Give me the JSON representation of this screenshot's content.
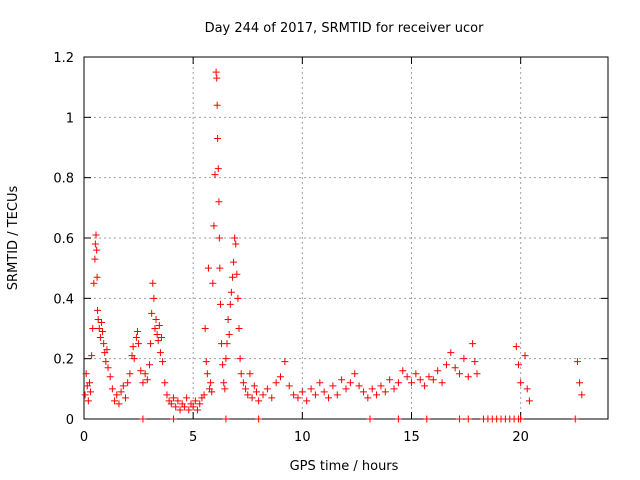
{
  "chart_data": {
    "type": "scatter",
    "title": "Day 244 of 2017, SRMTID for receiver ucor",
    "xlabel": "GPS time / hours",
    "ylabel": "SRMTID / TECUs",
    "xlim": [
      0,
      24
    ],
    "ylim": [
      0,
      1.2
    ],
    "grid": true,
    "x_ticks": [
      0,
      5,
      10,
      15,
      20
    ],
    "x_tick_labels": [
      "0",
      "5",
      "10",
      "15",
      "20"
    ],
    "y_ticks": [
      0,
      0.2,
      0.4,
      0.6,
      0.8,
      1.0,
      1.2
    ],
    "y_tick_labels": [
      "0",
      "0.2",
      "0.4",
      "0.6",
      "0.8",
      "1",
      "1.2"
    ],
    "series": [
      {
        "name": "SRMTID",
        "marker": "plus",
        "color": "#ff0000",
        "points": [
          [
            0.05,
            0.08
          ],
          [
            0.1,
            0.15
          ],
          [
            0.15,
            0.11
          ],
          [
            0.2,
            0.06
          ],
          [
            0.25,
            0.12
          ],
          [
            0.3,
            0.09
          ],
          [
            0.35,
            0.21
          ],
          [
            0.4,
            0.3
          ],
          [
            0.45,
            0.45
          ],
          [
            0.5,
            0.53
          ],
          [
            0.52,
            0.58
          ],
          [
            0.55,
            0.61
          ],
          [
            0.58,
            0.56
          ],
          [
            0.6,
            0.47
          ],
          [
            0.62,
            0.36
          ],
          [
            0.65,
            0.33
          ],
          [
            0.7,
            0.3
          ],
          [
            0.75,
            0.27
          ],
          [
            0.8,
            0.32
          ],
          [
            0.85,
            0.29
          ],
          [
            0.9,
            0.25
          ],
          [
            0.95,
            0.22
          ],
          [
            1.0,
            0.19
          ],
          [
            1.05,
            0.23
          ],
          [
            1.1,
            0.17
          ],
          [
            1.2,
            0.14
          ],
          [
            1.3,
            0.1
          ],
          [
            1.4,
            0.06
          ],
          [
            1.5,
            0.08
          ],
          [
            1.6,
            0.05
          ],
          [
            1.7,
            0.09
          ],
          [
            1.8,
            0.11
          ],
          [
            1.9,
            0.07
          ],
          [
            2.0,
            0.12
          ],
          [
            2.1,
            0.15
          ],
          [
            2.2,
            0.21
          ],
          [
            2.25,
            0.24
          ],
          [
            2.3,
            0.2
          ],
          [
            2.4,
            0.27
          ],
          [
            2.45,
            0.29
          ],
          [
            2.5,
            0.25
          ],
          [
            2.6,
            0.16
          ],
          [
            2.7,
            0.12
          ],
          [
            2.8,
            0.15
          ],
          [
            2.9,
            0.13
          ],
          [
            3.0,
            0.18
          ],
          [
            3.05,
            0.25
          ],
          [
            3.1,
            0.35
          ],
          [
            3.15,
            0.45
          ],
          [
            3.2,
            0.4
          ],
          [
            3.25,
            0.3
          ],
          [
            3.3,
            0.33
          ],
          [
            3.35,
            0.28
          ],
          [
            3.4,
            0.26
          ],
          [
            3.45,
            0.31
          ],
          [
            3.5,
            0.22
          ],
          [
            3.55,
            0.27
          ],
          [
            3.6,
            0.19
          ],
          [
            3.7,
            0.12
          ],
          [
            3.8,
            0.08
          ],
          [
            3.9,
            0.06
          ],
          [
            4.0,
            0.05
          ],
          [
            4.1,
            0.07
          ],
          [
            4.2,
            0.04
          ],
          [
            4.3,
            0.06
          ],
          [
            4.4,
            0.03
          ],
          [
            4.5,
            0.05
          ],
          [
            4.6,
            0.04
          ],
          [
            4.7,
            0.07
          ],
          [
            4.8,
            0.03
          ],
          [
            4.9,
            0.05
          ],
          [
            5.0,
            0.04
          ],
          [
            5.1,
            0.06
          ],
          [
            5.2,
            0.03
          ],
          [
            5.3,
            0.05
          ],
          [
            5.4,
            0.07
          ],
          [
            5.5,
            0.08
          ],
          [
            5.55,
            0.3
          ],
          [
            5.6,
            0.19
          ],
          [
            5.65,
            0.15
          ],
          [
            5.7,
            0.5
          ],
          [
            5.75,
            0.1
          ],
          [
            5.8,
            0.12
          ],
          [
            5.85,
            0.09
          ],
          [
            5.9,
            0.45
          ],
          [
            5.95,
            0.64
          ],
          [
            6.0,
            0.81
          ],
          [
            6.05,
            1.15
          ],
          [
            6.08,
            1.13
          ],
          [
            6.1,
            1.04
          ],
          [
            6.12,
            0.93
          ],
          [
            6.15,
            0.83
          ],
          [
            6.18,
            0.72
          ],
          [
            6.2,
            0.6
          ],
          [
            6.22,
            0.5
          ],
          [
            6.25,
            0.38
          ],
          [
            6.3,
            0.25
          ],
          [
            6.35,
            0.18
          ],
          [
            6.4,
            0.12
          ],
          [
            6.45,
            0.1
          ],
          [
            6.5,
            0.2
          ],
          [
            6.55,
            0.25
          ],
          [
            6.6,
            0.33
          ],
          [
            6.65,
            0.28
          ],
          [
            6.7,
            0.38
          ],
          [
            6.75,
            0.42
          ],
          [
            6.8,
            0.47
          ],
          [
            6.85,
            0.52
          ],
          [
            6.9,
            0.6
          ],
          [
            6.95,
            0.58
          ],
          [
            7.0,
            0.48
          ],
          [
            7.05,
            0.4
          ],
          [
            7.1,
            0.3
          ],
          [
            7.15,
            0.2
          ],
          [
            7.2,
            0.15
          ],
          [
            7.3,
            0.12
          ],
          [
            7.4,
            0.1
          ],
          [
            7.5,
            0.08
          ],
          [
            7.6,
            0.15
          ],
          [
            7.7,
            0.07
          ],
          [
            7.8,
            0.11
          ],
          [
            7.9,
            0.09
          ],
          [
            8.0,
            0.06
          ],
          [
            8.2,
            0.08
          ],
          [
            8.4,
            0.1
          ],
          [
            8.6,
            0.07
          ],
          [
            8.8,
            0.12
          ],
          [
            9.0,
            0.14
          ],
          [
            9.2,
            0.19
          ],
          [
            9.4,
            0.11
          ],
          [
            9.6,
            0.08
          ],
          [
            9.8,
            0.07
          ],
          [
            10.0,
            0.09
          ],
          [
            10.2,
            0.06
          ],
          [
            10.4,
            0.1
          ],
          [
            10.6,
            0.08
          ],
          [
            10.8,
            0.12
          ],
          [
            11.0,
            0.09
          ],
          [
            11.2,
            0.07
          ],
          [
            11.4,
            0.11
          ],
          [
            11.6,
            0.08
          ],
          [
            11.8,
            0.13
          ],
          [
            12.0,
            0.1
          ],
          [
            12.2,
            0.12
          ],
          [
            12.4,
            0.15
          ],
          [
            12.6,
            0.11
          ],
          [
            12.8,
            0.09
          ],
          [
            13.0,
            0.07
          ],
          [
            13.2,
            0.1
          ],
          [
            13.4,
            0.08
          ],
          [
            13.6,
            0.11
          ],
          [
            13.8,
            0.09
          ],
          [
            14.0,
            0.13
          ],
          [
            14.2,
            0.1
          ],
          [
            14.4,
            0.12
          ],
          [
            14.6,
            0.16
          ],
          [
            14.8,
            0.14
          ],
          [
            15.0,
            0.12
          ],
          [
            15.2,
            0.15
          ],
          [
            15.4,
            0.13
          ],
          [
            15.6,
            0.11
          ],
          [
            15.8,
            0.14
          ],
          [
            16.0,
            0.13
          ],
          [
            16.2,
            0.16
          ],
          [
            16.4,
            0.12
          ],
          [
            16.6,
            0.18
          ],
          [
            16.8,
            0.22
          ],
          [
            17.0,
            0.17
          ],
          [
            17.2,
            0.15
          ],
          [
            17.4,
            0.2
          ],
          [
            17.6,
            0.14
          ],
          [
            17.8,
            0.25
          ],
          [
            17.9,
            0.19
          ],
          [
            18.0,
            0.15
          ],
          [
            19.8,
            0.24
          ],
          [
            19.9,
            0.18
          ],
          [
            20.0,
            0.12
          ],
          [
            20.2,
            0.21
          ],
          [
            20.3,
            0.1
          ],
          [
            20.4,
            0.06
          ],
          [
            22.6,
            0.19
          ],
          [
            22.7,
            0.12
          ],
          [
            22.8,
            0.08
          ],
          [
            2.7,
            0.0
          ],
          [
            4.1,
            0.0
          ],
          [
            6.5,
            0.0
          ],
          [
            8.0,
            0.0
          ],
          [
            13.1,
            0.0
          ],
          [
            14.4,
            0.0
          ],
          [
            15.7,
            0.0
          ],
          [
            17.2,
            0.0
          ],
          [
            17.6,
            0.0
          ],
          [
            18.3,
            0.0
          ],
          [
            18.5,
            0.0
          ],
          [
            18.7,
            0.0
          ],
          [
            18.9,
            0.0
          ],
          [
            19.1,
            0.0
          ],
          [
            19.3,
            0.0
          ],
          [
            19.5,
            0.0
          ],
          [
            19.7,
            0.0
          ],
          [
            19.9,
            0.0
          ],
          [
            20.0,
            0.0
          ],
          [
            22.5,
            0.0
          ]
        ]
      }
    ]
  }
}
